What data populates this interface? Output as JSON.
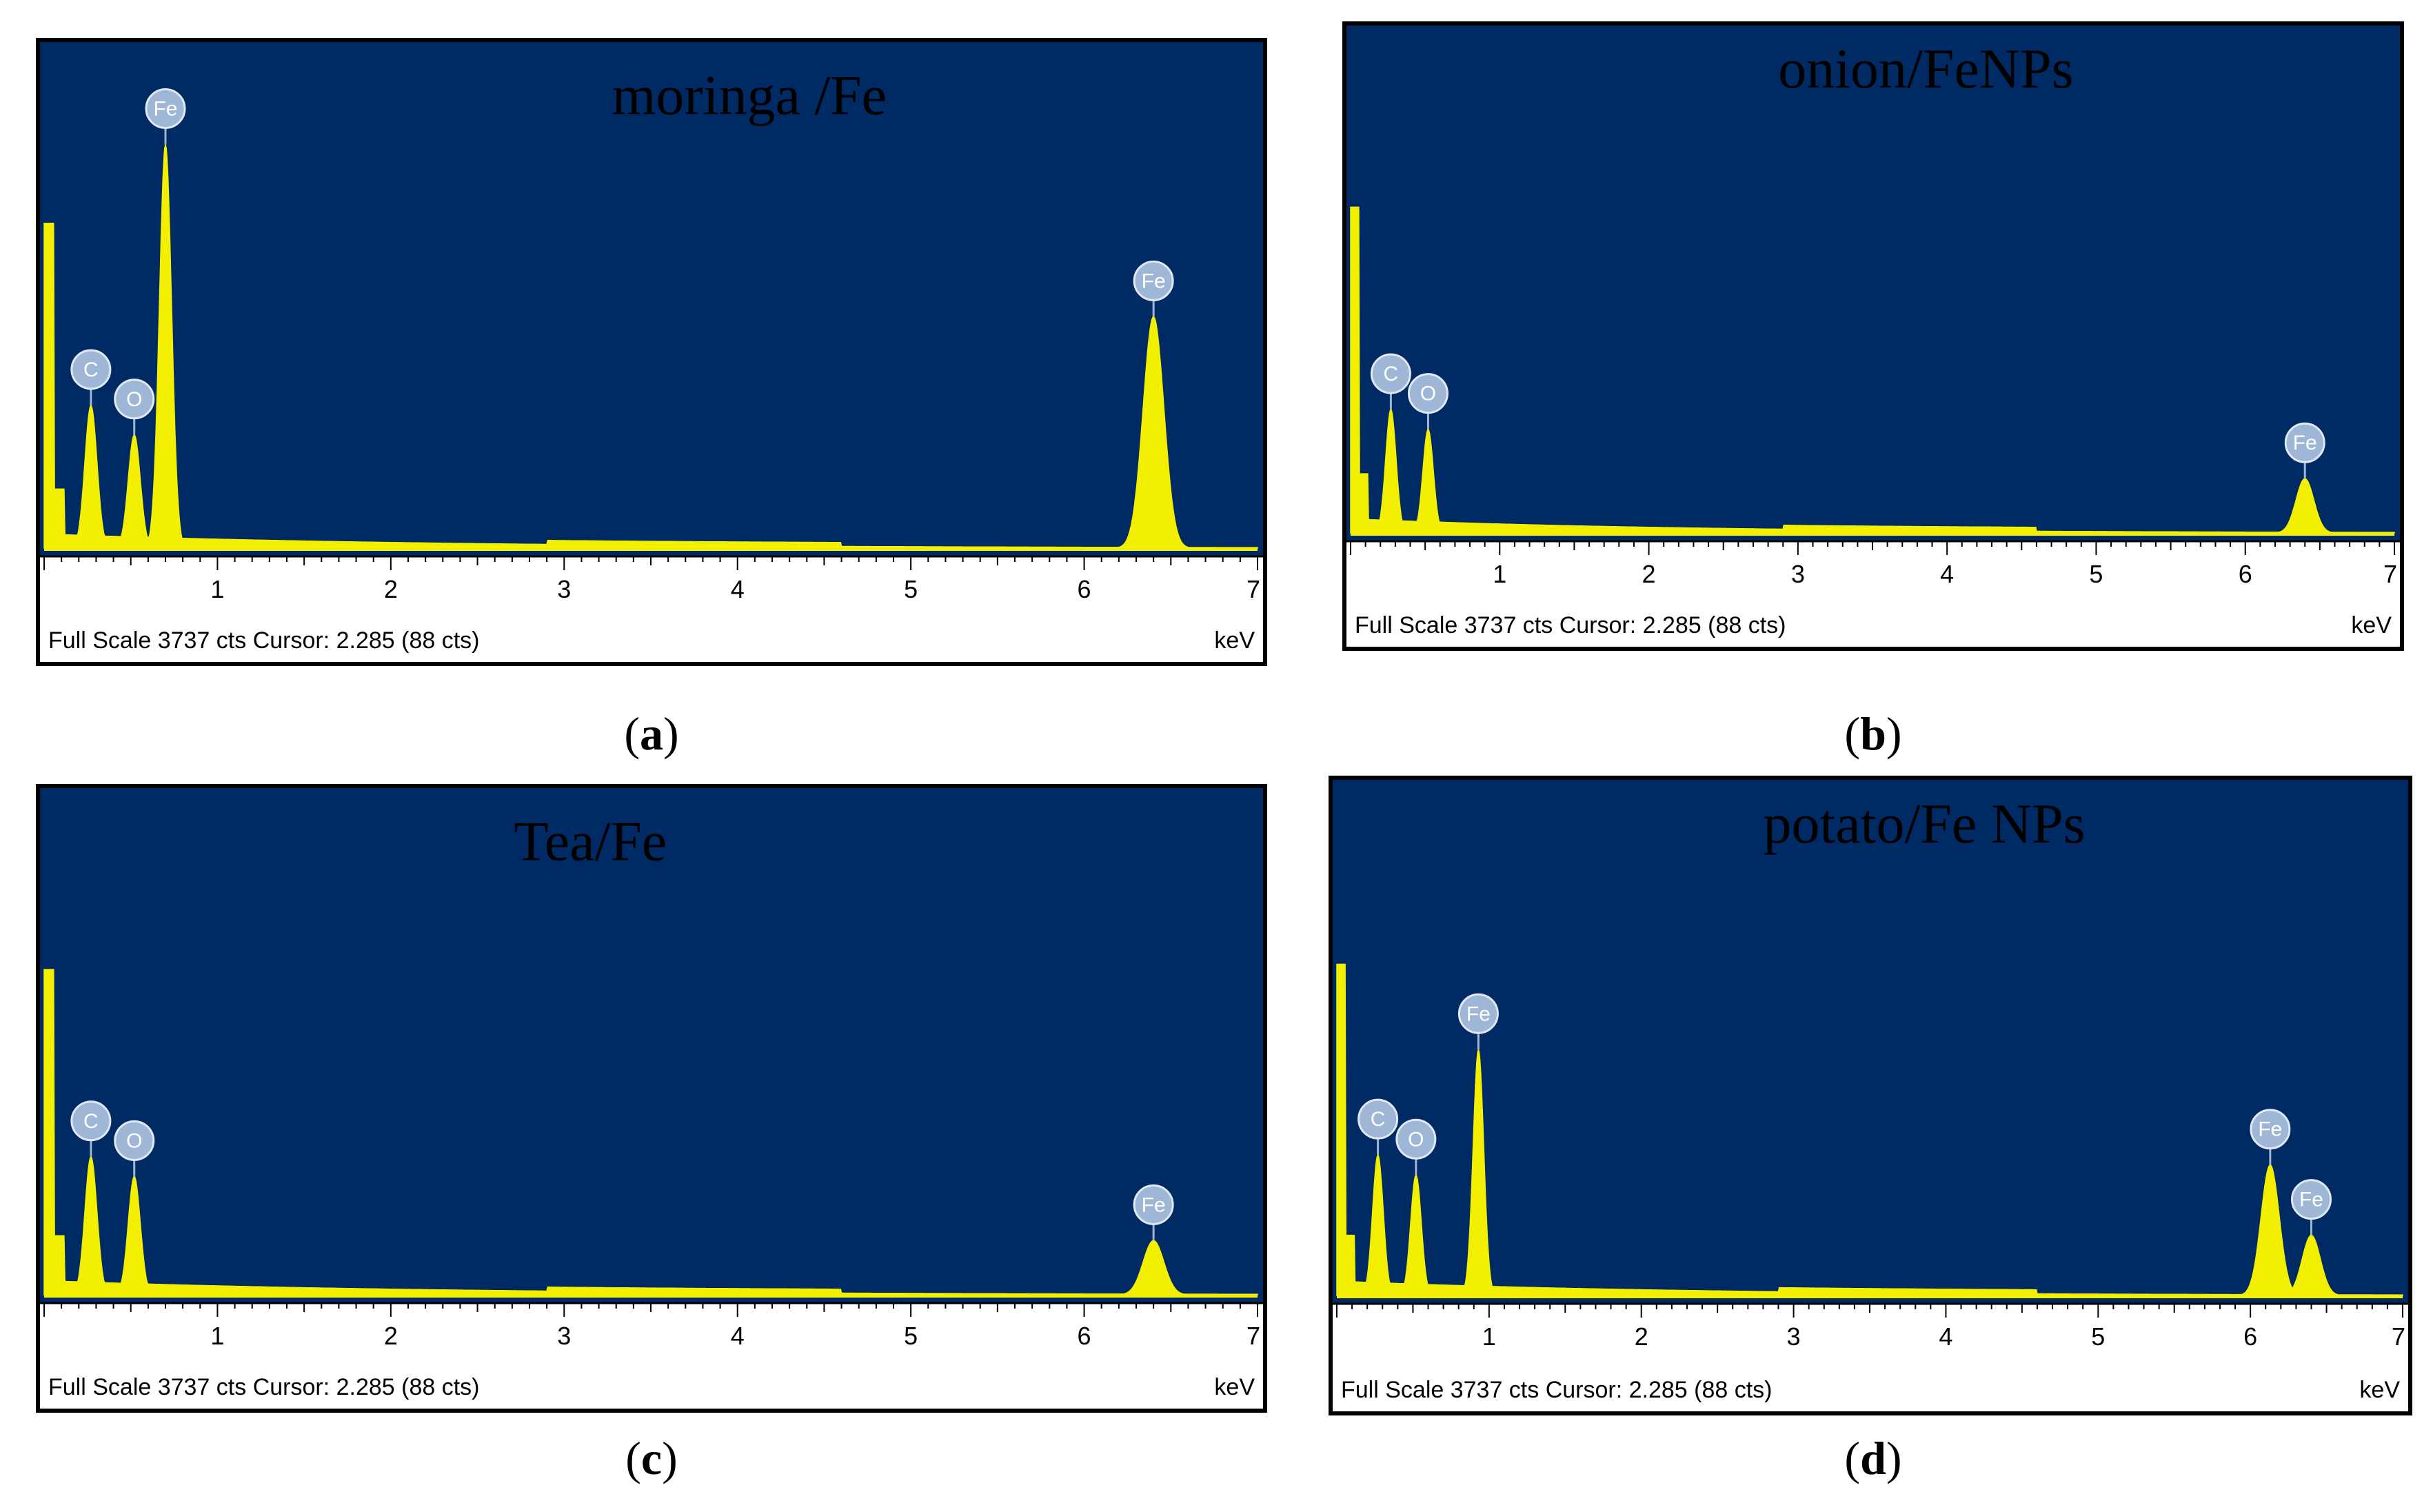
{
  "colors": {
    "plot_bg": "#002a63",
    "spectrum": "#f2f000",
    "label_bubble": "#9fb7d6",
    "axis": "#000000"
  },
  "footer_text": "Full Scale 3737 cts Cursor: 2.285  (88 cts)",
  "chart_data": [
    {
      "type": "area",
      "panel": "a",
      "title": "moringa /Fe",
      "xlabel": "keV",
      "xlim": [
        0,
        7
      ],
      "x_ticks": [
        "1",
        "2",
        "3",
        "4",
        "5",
        "6",
        "7"
      ],
      "ylim": [
        0,
        3737
      ],
      "peaks": [
        {
          "element": "C",
          "x": 0.27,
          "height": 0.29
        },
        {
          "element": "O",
          "x": 0.52,
          "height": 0.23
        },
        {
          "element": "Fe",
          "x": 0.7,
          "height": 0.82
        },
        {
          "element": "Fe",
          "x": 6.4,
          "height": 0.47
        }
      ]
    },
    {
      "type": "area",
      "panel": "b",
      "title": "onion/FeNPs",
      "xlabel": "keV",
      "xlim": [
        0,
        7
      ],
      "x_ticks": [
        "1",
        "2",
        "3",
        "4",
        "5",
        "6",
        "7"
      ],
      "ylim": [
        0,
        3737
      ],
      "peaks": [
        {
          "element": "C",
          "x": 0.27,
          "height": 0.25
        },
        {
          "element": "O",
          "x": 0.52,
          "height": 0.21
        },
        {
          "element": "Fe",
          "x": 6.4,
          "height": 0.11
        }
      ]
    },
    {
      "type": "area",
      "panel": "c",
      "title": "Tea/Fe",
      "xlabel": "keV",
      "xlim": [
        0,
        7
      ],
      "x_ticks": [
        "1",
        "2",
        "3",
        "4",
        "5",
        "6",
        "7"
      ],
      "ylim": [
        0,
        3737
      ],
      "peaks": [
        {
          "element": "C",
          "x": 0.27,
          "height": 0.28
        },
        {
          "element": "O",
          "x": 0.52,
          "height": 0.24
        },
        {
          "element": "Fe",
          "x": 6.4,
          "height": 0.11
        }
      ]
    },
    {
      "type": "area",
      "panel": "d",
      "title": "potato/Fe NPs",
      "xlabel": "keV",
      "xlim": [
        0,
        7
      ],
      "x_ticks": [
        "1",
        "2",
        "3",
        "4",
        "5",
        "6",
        "7"
      ],
      "ylim": [
        0,
        3737
      ],
      "peaks": [
        {
          "element": "C",
          "x": 0.27,
          "height": 0.28
        },
        {
          "element": "O",
          "x": 0.52,
          "height": 0.24
        },
        {
          "element": "Fe",
          "x": 0.93,
          "height": 0.49
        },
        {
          "element": "Fe",
          "x": 6.13,
          "height": 0.26
        },
        {
          "element": "Fe",
          "x": 6.4,
          "height": 0.12
        }
      ]
    }
  ],
  "captions": [
    "a",
    "b",
    "c",
    "d"
  ]
}
